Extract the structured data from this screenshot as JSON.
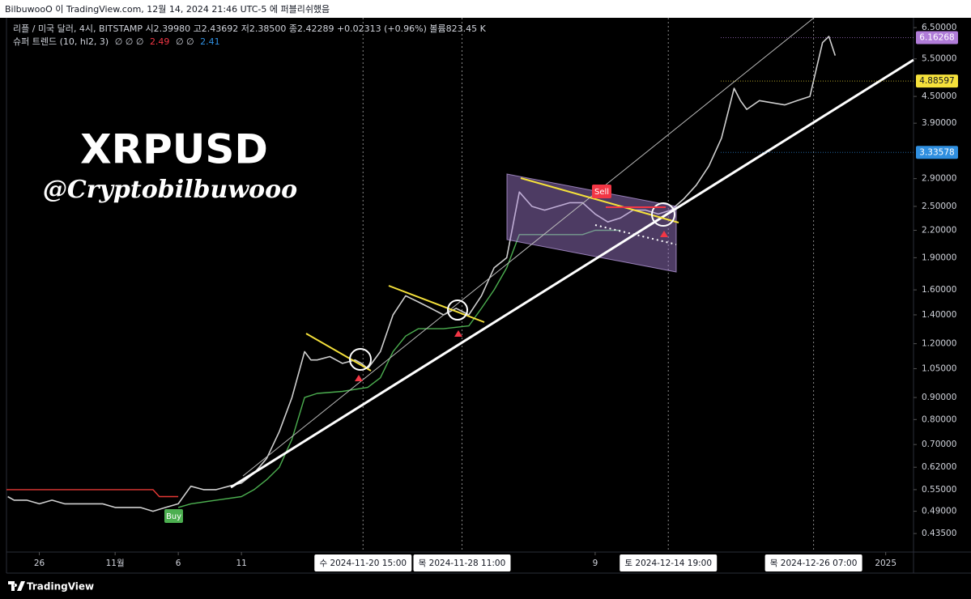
{
  "header": {
    "published": "BilbuwooO 이 TradingView.com, 12월 14, 2024 21:46 UTC-5 에 퍼블리쉬했음"
  },
  "legend": {
    "symbol_line": "리플 / 미국 달러, 4시, BITSTAMP  시2.39980  고2.43692  저2.38500  종2.42289  +0.02313 (+0.96%)  볼륨823.45 K",
    "indicator_name": "슈퍼 트렌드 (10, hl2, 3)",
    "indicator_empty1": "∅ ∅ ∅",
    "indicator_up": "2.49",
    "indicator_empty2": "∅ ∅",
    "indicator_down": "2.41"
  },
  "watermark": {
    "title": "XRPUSD",
    "author": "@Cryptobilbuwooo"
  },
  "signals": {
    "buy": "Buy",
    "sell": "Sell"
  },
  "footer": {
    "brand": "TradingView"
  },
  "chart_data": {
    "type": "line",
    "log_scale": true,
    "grid": false,
    "xlim": [
      23.4,
      95.2
    ],
    "ylim": [
      0.394,
      6.85
    ],
    "xticks": [
      {
        "value": 26,
        "label": "26"
      },
      {
        "value": 32,
        "label": "11월"
      },
      {
        "value": 37,
        "label": "6"
      },
      {
        "value": 42,
        "label": "11"
      },
      {
        "value": 70,
        "label": "9"
      },
      {
        "value": 93,
        "label": "2025"
      }
    ],
    "crosshair_ticks": [
      {
        "value": 51.625,
        "label": "수 2024-11-20   15:00"
      },
      {
        "value": 59.46,
        "label": "목 2024-11-28   11:00"
      },
      {
        "value": 75.79,
        "label": "토 2024-12-14   19:00"
      },
      {
        "value": 87.29,
        "label": "목 2024-12-26   07:00"
      }
    ],
    "yticks": [
      {
        "value": 6.5,
        "label": "6.50000"
      },
      {
        "value": 5.5,
        "label": "5.50000"
      },
      {
        "value": 4.5,
        "label": "4.50000"
      },
      {
        "value": 3.9,
        "label": "3.90000"
      },
      {
        "value": 2.9,
        "label": "2.90000"
      },
      {
        "value": 2.5,
        "label": "2.50000"
      },
      {
        "value": 2.2,
        "label": "2.20000"
      },
      {
        "value": 1.9,
        "label": "1.90000"
      },
      {
        "value": 1.6,
        "label": "1.60000"
      },
      {
        "value": 1.4,
        "label": "1.40000"
      },
      {
        "value": 1.2,
        "label": "1.20000"
      },
      {
        "value": 1.05,
        "label": "1.05000"
      },
      {
        "value": 0.9,
        "label": "0.90000"
      },
      {
        "value": 0.8,
        "label": "0.80000"
      },
      {
        "value": 0.7,
        "label": "0.70000"
      },
      {
        "value": 0.62,
        "label": "0.62000"
      },
      {
        "value": 0.55,
        "label": "0.55000"
      },
      {
        "value": 0.49,
        "label": "0.49000"
      },
      {
        "value": 0.435,
        "label": "0.43500"
      }
    ],
    "price_tags": [
      {
        "value": 6.16268,
        "color": "#b07cd8"
      },
      {
        "value": 4.88597,
        "color": "#f5e13b"
      },
      {
        "value": 3.33578,
        "color": "#2f8fe0"
      }
    ],
    "series": [
      {
        "color": "#cfcfcf",
        "x": [
          23.5,
          24,
          25,
          26,
          27,
          28,
          29,
          30,
          31,
          32,
          33,
          34,
          35,
          36,
          37,
          38,
          39,
          40,
          41,
          42,
          43,
          44,
          45,
          46,
          47,
          47.5,
          48,
          49,
          50,
          51,
          51.5,
          52,
          53,
          54,
          55,
          56,
          57,
          58,
          59,
          60,
          61,
          62,
          63,
          64,
          65,
          66,
          67,
          68,
          69,
          70,
          71,
          72,
          73,
          74,
          75,
          76,
          77,
          78,
          79,
          80,
          81,
          81.5,
          82,
          83,
          84,
          85,
          86,
          87,
          87.5,
          88,
          88.5,
          89
        ],
        "values": [
          0.53,
          0.52,
          0.52,
          0.51,
          0.52,
          0.51,
          0.51,
          0.51,
          0.51,
          0.5,
          0.5,
          0.5,
          0.49,
          0.5,
          0.51,
          0.56,
          0.55,
          0.55,
          0.56,
          0.57,
          0.6,
          0.65,
          0.75,
          0.9,
          1.15,
          1.1,
          1.1,
          1.12,
          1.08,
          1.1,
          1.08,
          1.05,
          1.15,
          1.4,
          1.55,
          1.5,
          1.45,
          1.4,
          1.45,
          1.4,
          1.55,
          1.8,
          1.9,
          2.7,
          2.5,
          2.45,
          2.5,
          2.55,
          2.55,
          2.4,
          2.3,
          2.35,
          2.45,
          2.45,
          2.4,
          2.45,
          2.6,
          2.8,
          3.1,
          3.6,
          4.7,
          4.4,
          4.2,
          4.4,
          4.35,
          4.3,
          4.4,
          4.5,
          5.2,
          6.0,
          6.2,
          5.6
        ]
      },
      {
        "color": "#e53935",
        "x": [
          23.4,
          35,
          35.5,
          37
        ],
        "values": [
          0.55,
          0.55,
          0.53,
          0.53
        ]
      },
      {
        "color": "#4caf50",
        "x": [
          37,
          38,
          40,
          42,
          43,
          44,
          45,
          46,
          47,
          48,
          50,
          52,
          53,
          54,
          55,
          56,
          58,
          60,
          61,
          62,
          63,
          64,
          65,
          69,
          70,
          72
        ],
        "values": [
          0.5,
          0.51,
          0.52,
          0.53,
          0.55,
          0.58,
          0.62,
          0.72,
          0.9,
          0.92,
          0.93,
          0.95,
          1.0,
          1.15,
          1.25,
          1.3,
          1.3,
          1.32,
          1.45,
          1.6,
          1.8,
          2.15,
          2.15,
          2.15,
          2.2,
          2.2
        ]
      }
    ]
  }
}
